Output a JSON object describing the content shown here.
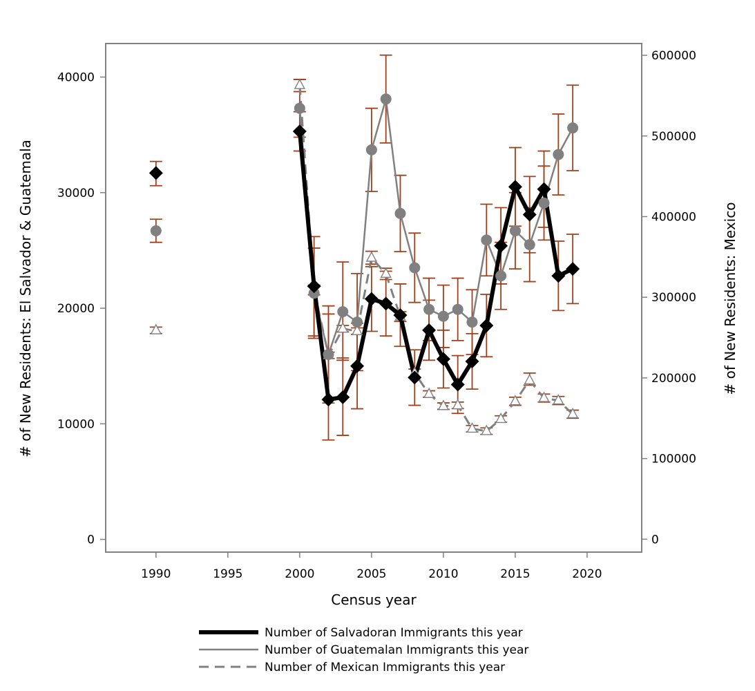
{
  "chart_data": {
    "type": "line",
    "title": "",
    "xlabel": "Census year",
    "ylabel_left": "# of New Residents: El Salvador & Guatemala",
    "ylabel_right": "# of New Residents: Mexico",
    "xlim": [
      1986.5,
      2023.8
    ],
    "ylim_left": [
      -1100,
      42900
    ],
    "ylim_right": [
      -16000,
      614600
    ],
    "xticks": [
      1990,
      1995,
      2000,
      2005,
      2010,
      2015,
      2020
    ],
    "yticks_left": [
      0,
      10000,
      20000,
      30000,
      40000
    ],
    "yticks_right": [
      0,
      100000,
      200000,
      300000,
      400000,
      500000,
      600000
    ],
    "grid": false,
    "legend_position": "bottom",
    "colors": {
      "salvadoran": "#000000",
      "guatemalan": "#808080",
      "mexican": "#808080",
      "error_bars": "#a0401c",
      "frame": "#808080"
    },
    "series": [
      {
        "name": "Number of Salvadoran Immigrants this year",
        "axis": "left",
        "marker": "diamond",
        "line": "thick-solid",
        "x": [
          1990,
          2000,
          2001,
          2002,
          2003,
          2004,
          2005,
          2006,
          2007,
          2008,
          2009,
          2010,
          2011,
          2012,
          2013,
          2014,
          2015,
          2016,
          2017,
          2018,
          2019
        ],
        "values": [
          31700,
          35300,
          21900,
          12100,
          12300,
          15000,
          20800,
          20400,
          19400,
          14000,
          18100,
          15600,
          13400,
          15400,
          18500,
          25400,
          30500,
          28100,
          30300,
          22800,
          23400
        ],
        "lower": [
          30600,
          33600,
          17600,
          8600,
          9000,
          11300,
          18000,
          17600,
          16700,
          11600,
          15500,
          13100,
          10900,
          13000,
          15800,
          22100,
          27100,
          24800,
          27000,
          19800,
          20400
        ],
        "upper": [
          32700,
          37000,
          26200,
          19500,
          15700,
          18700,
          23600,
          23200,
          22100,
          16400,
          20700,
          18100,
          15900,
          17800,
          21200,
          28700,
          33900,
          31400,
          33600,
          25800,
          26400
        ]
      },
      {
        "name": "Number of Guatemalan Immigrants this year",
        "axis": "left",
        "marker": "circle",
        "line": "thin-solid",
        "x": [
          1990,
          2000,
          2001,
          2002,
          2003,
          2004,
          2005,
          2006,
          2007,
          2008,
          2009,
          2010,
          2011,
          2012,
          2013,
          2014,
          2015,
          2016,
          2017,
          2018,
          2019
        ],
        "values": [
          26700,
          37300,
          21300,
          16000,
          19700,
          18800,
          33700,
          38100,
          28200,
          23500,
          19900,
          19300,
          19900,
          18800,
          25900,
          22800,
          26700,
          25500,
          29100,
          33300,
          35600
        ],
        "lower": [
          25700,
          34800,
          17400,
          11800,
          15500,
          14600,
          30100,
          34300,
          24900,
          20500,
          17200,
          16600,
          17200,
          16000,
          22800,
          19900,
          23400,
          22300,
          25900,
          29800,
          31900
        ],
        "upper": [
          27700,
          39800,
          25200,
          20200,
          24000,
          23000,
          37300,
          41900,
          31500,
          26500,
          22600,
          22000,
          22600,
          21600,
          29000,
          25700,
          30000,
          28700,
          32300,
          36800,
          39300
        ]
      },
      {
        "name": "Number of Mexican Immigrants this year",
        "axis": "right",
        "marker": "triangle",
        "line": "dashed",
        "x": [
          1990,
          2000,
          2001,
          2002,
          2003,
          2004,
          2005,
          2006,
          2007,
          2008,
          2009,
          2010,
          2011,
          2012,
          2013,
          2014,
          2015,
          2016,
          2017,
          2018,
          2019
        ],
        "values": [
          259000,
          563000,
          309000,
          228000,
          261000,
          258000,
          349000,
          329000,
          276000,
          206000,
          180000,
          165000,
          166000,
          137000,
          134000,
          149000,
          171000,
          197000,
          175000,
          172000,
          155000
        ],
        "lower": [
          255000,
          555000,
          303000,
          224000,
          257000,
          254000,
          341000,
          322000,
          270000,
          201000,
          176000,
          161000,
          162000,
          133000,
          130000,
          145000,
          166000,
          191000,
          170000,
          167000,
          150000
        ],
        "upper": [
          263000,
          570000,
          315000,
          232000,
          265000,
          262000,
          357000,
          336000,
          282000,
          211000,
          184000,
          169000,
          170000,
          141000,
          138000,
          153000,
          176000,
          206000,
          180000,
          177000,
          160000
        ]
      }
    ]
  }
}
